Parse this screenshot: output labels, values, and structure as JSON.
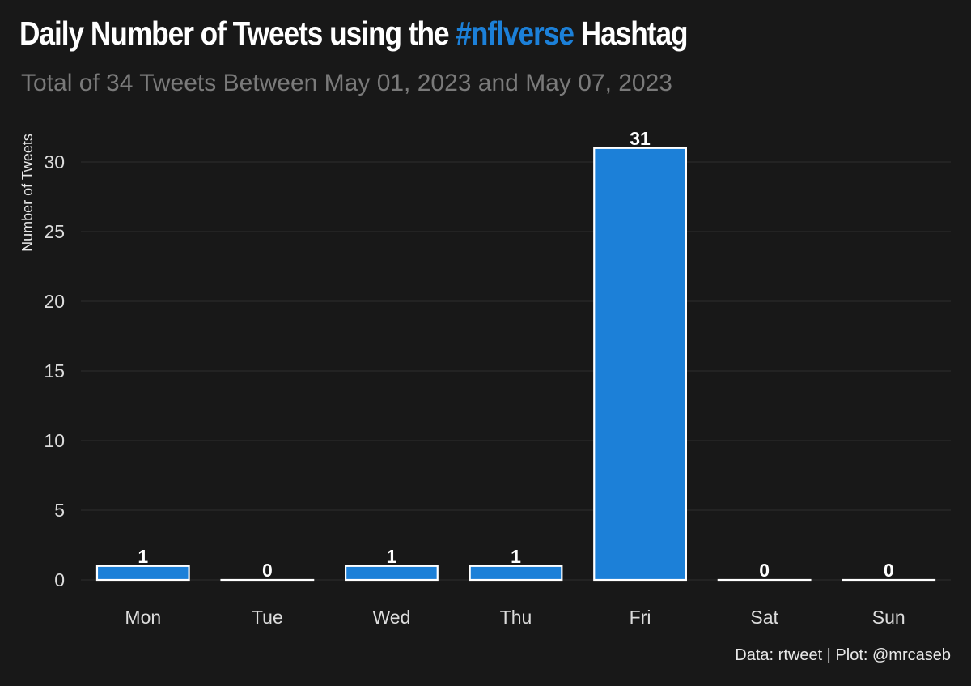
{
  "title": {
    "prefix": "Daily Number of Tweets using the ",
    "highlight": "#nflverse",
    "suffix": " Hashtag"
  },
  "subtitle": "Total of 34 Tweets Between May 01, 2023 and May 07, 2023",
  "caption": "Data: rtweet | Plot: @mrcaseb",
  "colors": {
    "bar": "#1c80d8",
    "background": "#181818",
    "outline": "#ffffff",
    "highlight": "#1c80d8"
  },
  "chart_data": {
    "type": "bar",
    "categories": [
      "Mon",
      "Tue",
      "Wed",
      "Thu",
      "Fri",
      "Sat",
      "Sun"
    ],
    "values": [
      1,
      0,
      1,
      1,
      31,
      0,
      0
    ],
    "data_labels": [
      "1",
      "0",
      "1",
      "1",
      "31",
      "0",
      "0"
    ],
    "ylabel": "Number of Tweets",
    "xlabel": "",
    "ylim": [
      0,
      32
    ],
    "yticks": [
      0,
      5,
      10,
      15,
      20,
      25,
      30
    ],
    "grid": true,
    "legend": "none"
  }
}
